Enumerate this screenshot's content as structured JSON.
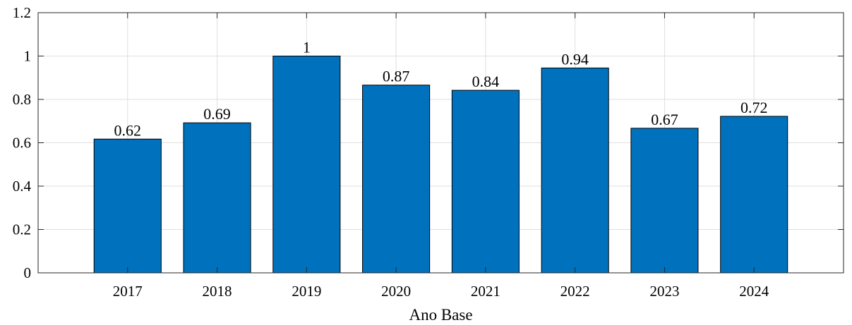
{
  "chart_data": {
    "type": "bar",
    "title": "",
    "xlabel": "Ano Base",
    "ylabel": "",
    "categories": [
      "2017",
      "2018",
      "2019",
      "2020",
      "2021",
      "2022",
      "2023",
      "2024"
    ],
    "values": [
      0.617,
      0.692,
      1.0,
      0.866,
      0.842,
      0.945,
      0.667,
      0.722
    ],
    "value_labels": [
      "0.62",
      "0.69",
      "1",
      "0.87",
      "0.84",
      "0.94",
      "0.67",
      "0.72"
    ],
    "ylim": [
      0,
      1.2
    ],
    "yticks": [
      0,
      0.2,
      0.4,
      0.6,
      0.8,
      1,
      1.2
    ],
    "ytick_labels": [
      "0",
      "0.2",
      "0.4",
      "0.6",
      "0.8",
      "1",
      "1.2"
    ],
    "grid": true,
    "bar_color": "#0072BD"
  }
}
